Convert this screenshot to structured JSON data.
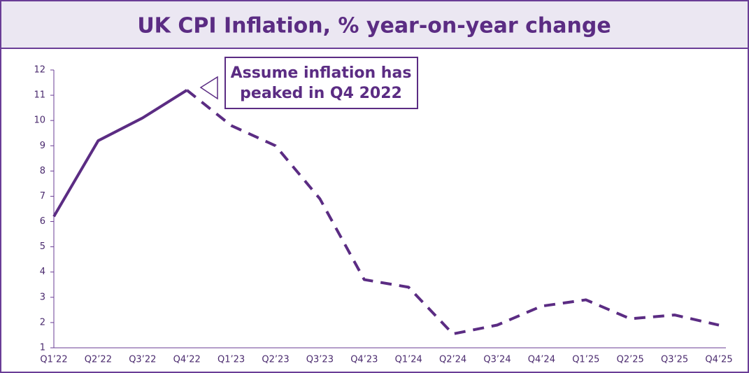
{
  "chart_data": {
    "type": "line",
    "title": "UK CPI Inflation, % year-on-year change",
    "annotation": [
      "Assume inflation has",
      "peaked in Q4 2022"
    ],
    "categories": [
      "Q1’22",
      "Q2’22",
      "Q3’22",
      "Q4’22",
      "Q1’23",
      "Q2’23",
      "Q3’23",
      "Q4’23",
      "Q1’24",
      "Q2’24",
      "Q3’24",
      "Q4’24",
      "Q1’25",
      "Q2’25",
      "Q3’25",
      "Q4’25"
    ],
    "series": [
      {
        "color": "#5b2c83",
        "dashed": false,
        "values": [
          6.2,
          9.2,
          10.1,
          11.2,
          null,
          null,
          null,
          null,
          null,
          null,
          null,
          null,
          null,
          null,
          null,
          null
        ]
      },
      {
        "color": "#5b2c83",
        "dashed": true,
        "values": [
          null,
          null,
          null,
          11.2,
          9.8,
          9.0,
          6.9,
          3.7,
          3.4,
          1.55,
          1.9,
          2.65,
          2.9,
          2.15,
          2.3,
          1.9
        ]
      }
    ],
    "ylim": [
      1,
      12
    ],
    "yticks": [
      1,
      2,
      3,
      4,
      5,
      6,
      7,
      8,
      9,
      10,
      11,
      12
    ],
    "grid": false
  }
}
